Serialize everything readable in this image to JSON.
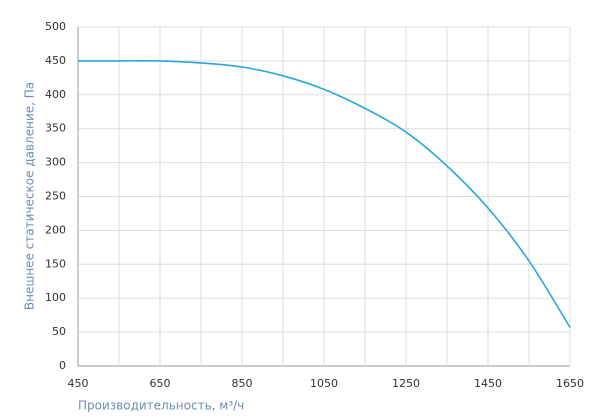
{
  "chart_data": {
    "type": "line",
    "x_label": "Производительность, м³/ч",
    "y_label": "Внешнее статическое давление, Па",
    "x": [
      450,
      550,
      650,
      750,
      850,
      950,
      1050,
      1150,
      1250,
      1350,
      1450,
      1550,
      1650
    ],
    "series": [
      {
        "color": "#2aa7dc",
        "values": [
          450,
          450,
          450,
          447,
          441,
          428,
          408,
          380,
          345,
          295,
          233,
          155,
          57
        ]
      }
    ],
    "xlim": [
      450,
      1650
    ],
    "xticks": [
      450,
      650,
      850,
      1050,
      1250,
      1450,
      1650
    ],
    "xminorticks": [
      550,
      750,
      950,
      1150,
      1350,
      1550
    ],
    "ylim": [
      0,
      500
    ],
    "yticks": [
      0,
      50,
      100,
      150,
      200,
      250,
      300,
      350,
      400,
      450,
      500
    ],
    "grid": true
  }
}
